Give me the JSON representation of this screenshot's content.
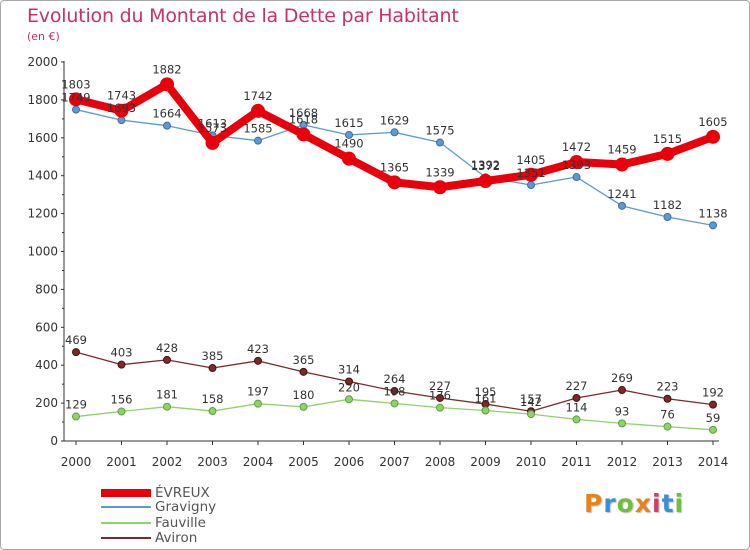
{
  "title": "Evolution du Montant de la Dette par Habitant",
  "subtitle": "(en €)",
  "logo": {
    "text": "Proxiti",
    "letters": [
      "P",
      "r",
      "o",
      "x",
      "i",
      "t",
      "i"
    ],
    "colors": [
      "#e8821e",
      "#3b8fd4",
      "#6fbf3b",
      "#e8821e",
      "#d43b6f",
      "#3b8fd4",
      "#6fbf3b"
    ]
  },
  "chart_data": {
    "type": "line",
    "x": [
      "2000",
      "2001",
      "2002",
      "2003",
      "2004",
      "2005",
      "2006",
      "2007",
      "2008",
      "2009",
      "2010",
      "2011",
      "2012",
      "2013",
      "2014"
    ],
    "ylim": [
      0,
      2000
    ],
    "yticks": [
      "0",
      "200",
      "400",
      "600",
      "800",
      "1000",
      "1200",
      "1400",
      "1600",
      "1800",
      "2000"
    ],
    "grid": false,
    "legend_position": "bottom-left",
    "series": [
      {
        "name": "ÉVREUX",
        "color": "#e8000b",
        "values": [
          1803,
          1743,
          1882,
          1573,
          1742,
          1618,
          1490,
          1365,
          1339,
          1372,
          1405,
          1472,
          1459,
          1515,
          1605
        ],
        "labels": [
          "1803",
          "1743",
          "1882",
          "1573",
          "1742",
          "1618",
          "1490",
          "1365",
          "1339",
          "1372",
          "1405",
          "1472",
          "1459",
          "1515",
          "1605"
        ]
      },
      {
        "name": "Gravigny",
        "color": "#5b9bd5",
        "values": [
          1749,
          1693,
          1664,
          1613,
          1585,
          1668,
          1615,
          1629,
          1575,
          1392,
          1351,
          1393,
          1241,
          1182,
          1138
        ],
        "labels": [
          "1749",
          "1693",
          "1664",
          "1613",
          "1585",
          "1668",
          "1615",
          "1629",
          "1575",
          "1392",
          "1351",
          "1393",
          "1241",
          "1182",
          "1138"
        ]
      },
      {
        "name": "Fauville",
        "color": "#8fd16a",
        "values": [
          129,
          156,
          181,
          158,
          197,
          180,
          220,
          198,
          176,
          161,
          142,
          114,
          93,
          76,
          59
        ],
        "labels": [
          "129",
          "156",
          "181",
          "158",
          "197",
          "180",
          "220",
          "198",
          "176",
          "161",
          "142",
          "114",
          "93",
          "76",
          "59"
        ]
      },
      {
        "name": "Aviron",
        "color": "#7a2a2a",
        "values": [
          469,
          403,
          428,
          385,
          423,
          365,
          314,
          264,
          227,
          195,
          157,
          227,
          269,
          223,
          192
        ],
        "labels": [
          "469",
          "403",
          "428",
          "385",
          "423",
          "365",
          "314",
          "264",
          "227",
          "195",
          "157",
          "227",
          "269",
          "223",
          "192"
        ]
      }
    ]
  }
}
